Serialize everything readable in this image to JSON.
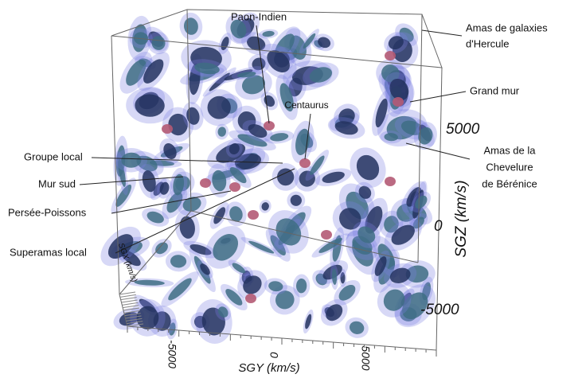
{
  "labels": {
    "paon_indien": "Paon-Indien",
    "hercule": [
      "Amas de galaxies",
      "d'Hercule"
    ],
    "grand_mur": "Grand mur",
    "centaurus": "Centaurus",
    "groupe_local": "Groupe local",
    "mur_sud": "Mur sud",
    "persee_poissons": "Persée-Poissons",
    "superamas_local": "Superamas local",
    "chevelure": [
      "Amas de la",
      "Chevelure",
      "de Bérénice"
    ]
  },
  "axes": {
    "sgz": {
      "label": "SGZ (km/s)",
      "ticks": [
        "5000",
        "0",
        "-5000"
      ]
    },
    "sgy": {
      "label": "SGY (km/s)",
      "ticks": [
        "-5000",
        "0",
        "5000"
      ]
    },
    "sgx": {
      "label": "SGX (km/s)"
    }
  }
}
